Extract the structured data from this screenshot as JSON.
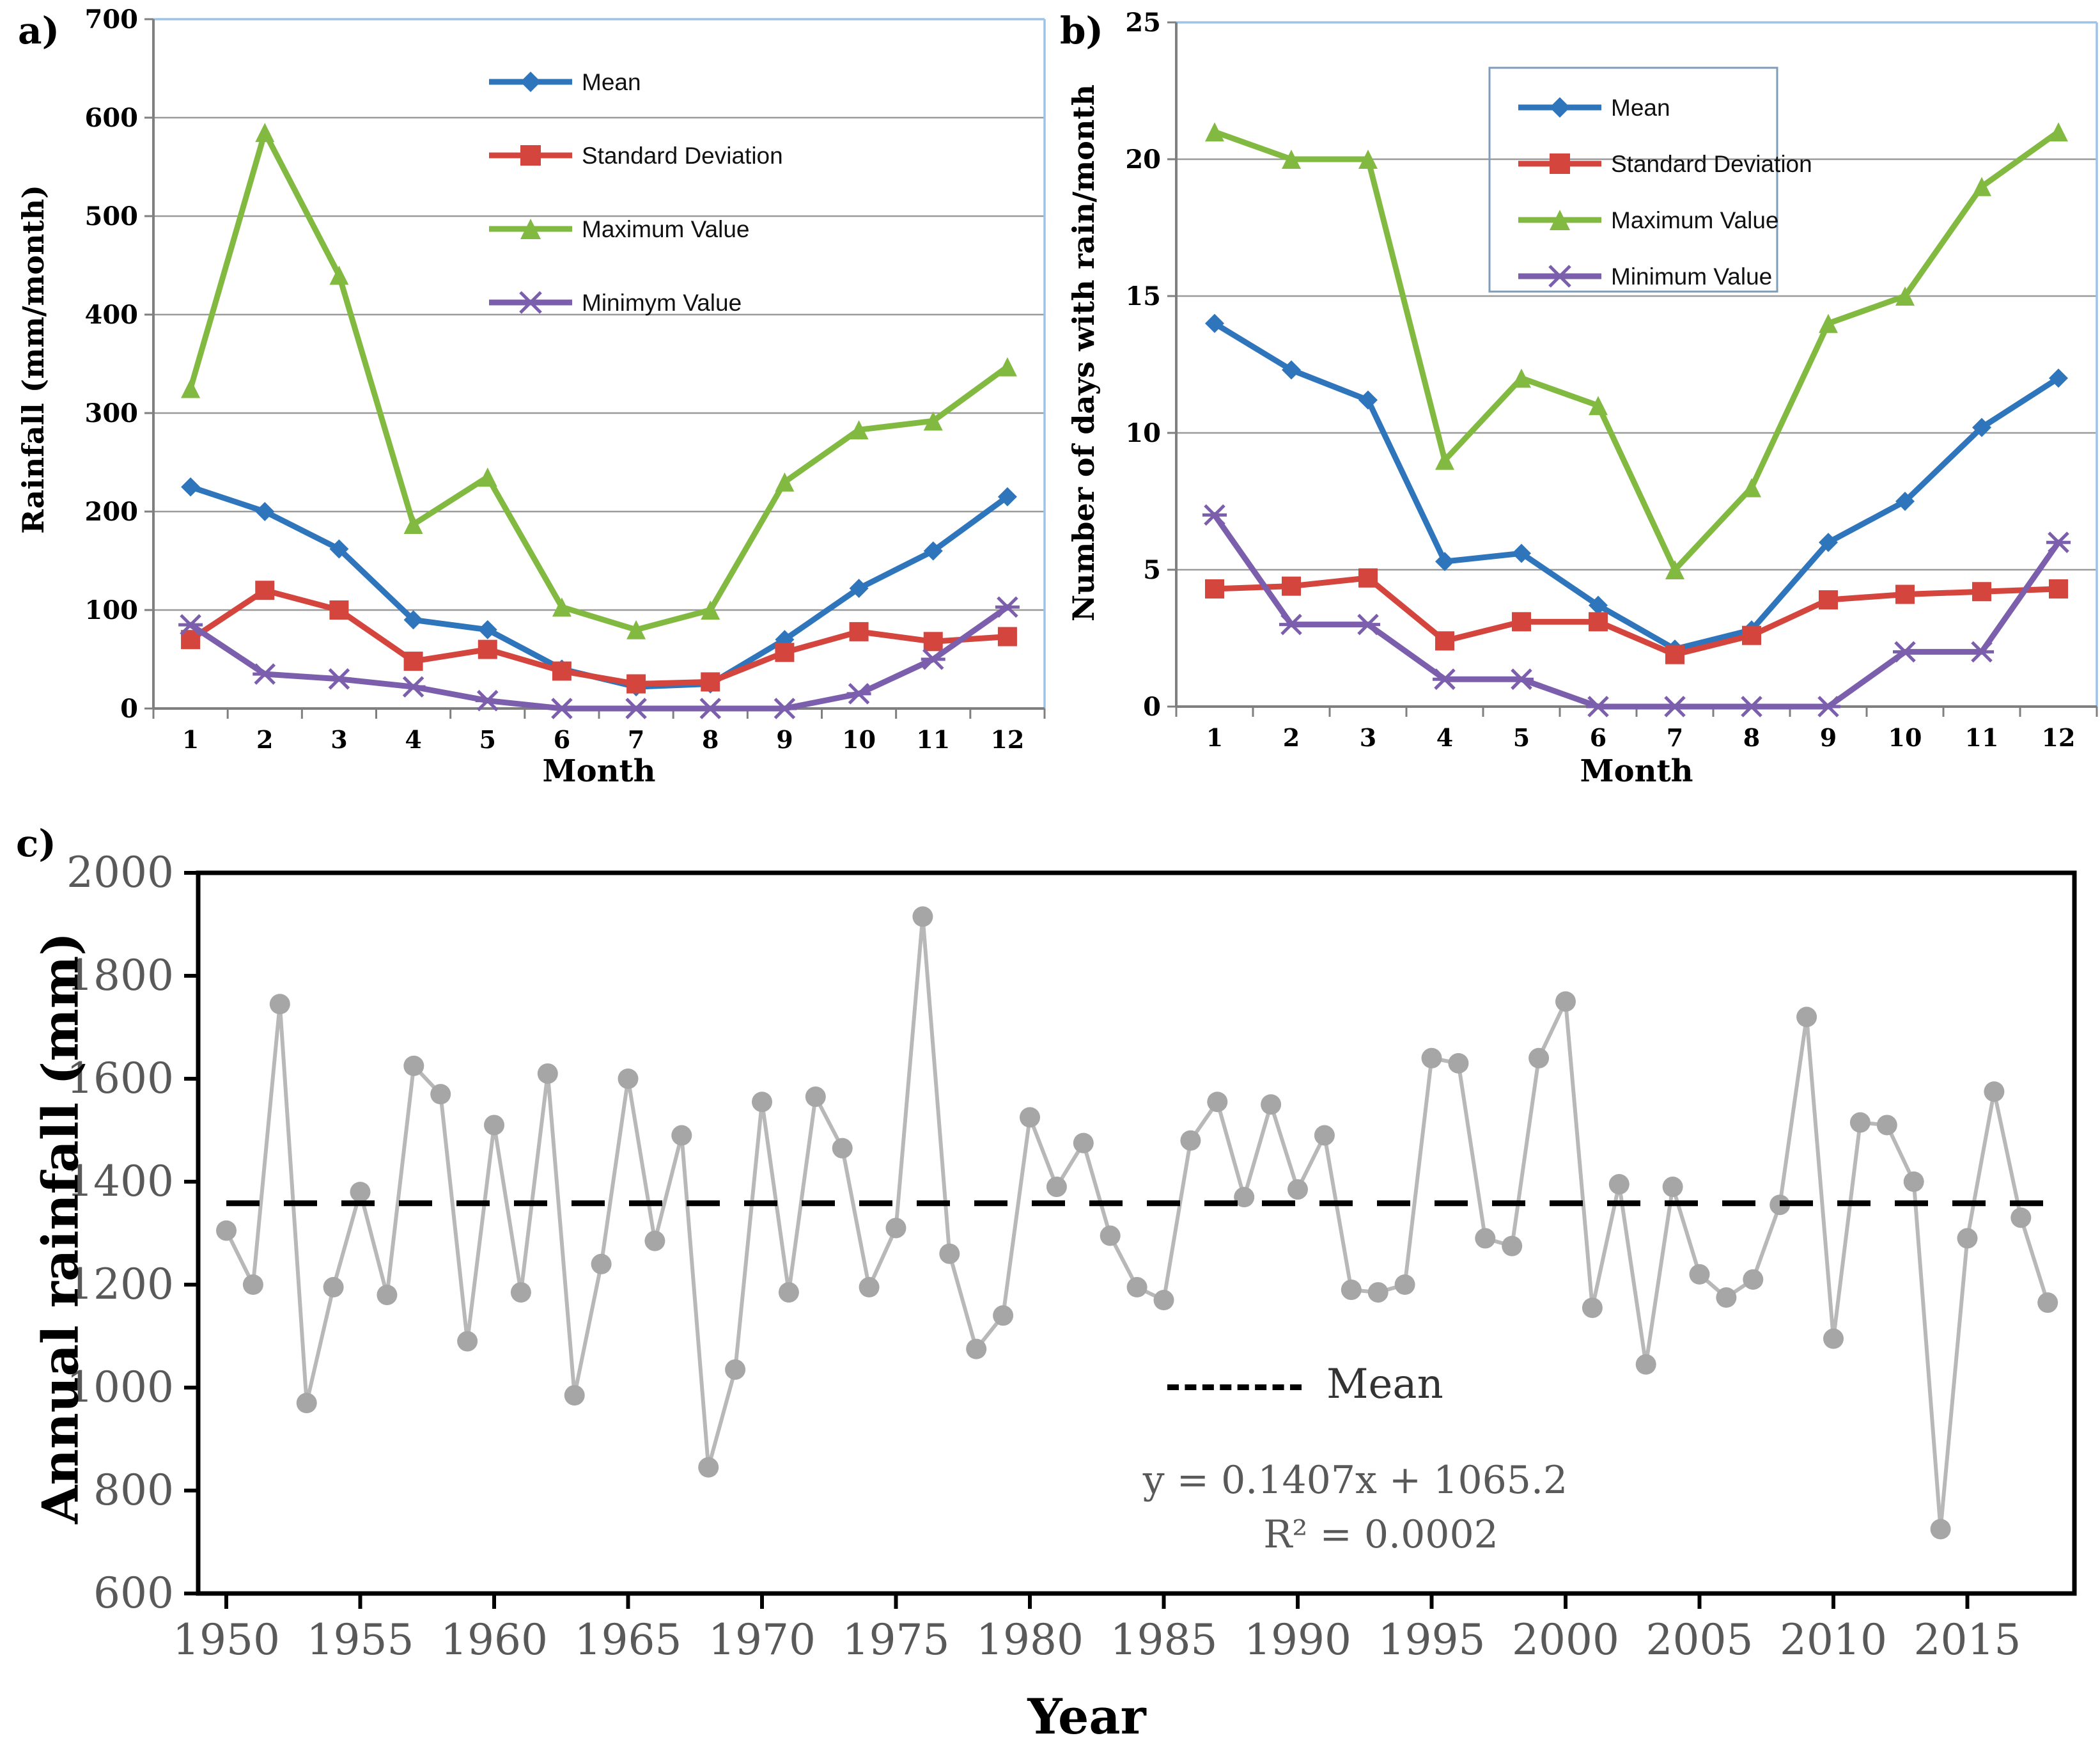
{
  "panels": {
    "a": "a)",
    "b": "b)",
    "c": "c)"
  },
  "colors": {
    "mean_blue": "#2e75bc",
    "sd_red": "#d4453e",
    "max_green": "#82ba41",
    "min_purple": "#7c5fac",
    "gridline_gray": "#9a9a9a",
    "axis_gray": "#7f7f7f",
    "border_lightblue": "#9dc3e6",
    "legend_box_border": "#7f9db9",
    "series_c_gray": "#a6a6a6",
    "c_line_gray": "#b8b8b8",
    "c_axis_black": "#000000",
    "c_text_gray": "#595959"
  },
  "chart_data": [
    {
      "id": "a",
      "type": "line",
      "title": "",
      "xlabel": "Month",
      "ylabel": "Rainfall (mm/month)",
      "categories": [
        1,
        2,
        3,
        4,
        5,
        6,
        7,
        8,
        9,
        10,
        11,
        12
      ],
      "ylim": [
        0,
        700
      ],
      "ytick_step": 100,
      "y_ticks": [
        0,
        100,
        200,
        300,
        400,
        500,
        600,
        700
      ],
      "grid": true,
      "legend_position": "top-center-no-box",
      "series": [
        {
          "name": "Mean",
          "marker": "diamond",
          "values": [
            225,
            200,
            162,
            90,
            80,
            40,
            22,
            25,
            70,
            122,
            160,
            215
          ]
        },
        {
          "name": "Standard Deviation",
          "marker": "square",
          "values": [
            70,
            120,
            100,
            48,
            60,
            38,
            25,
            27,
            57,
            78,
            68,
            73
          ]
        },
        {
          "name": "Maximum Value",
          "marker": "triangle",
          "values": [
            325,
            585,
            440,
            187,
            235,
            103,
            80,
            100,
            230,
            283,
            292,
            347
          ]
        },
        {
          "name": "Minimym Value",
          "marker": "x",
          "values": [
            85,
            35,
            30,
            22,
            8,
            0,
            0,
            0,
            0,
            15,
            50,
            103
          ]
        }
      ]
    },
    {
      "id": "b",
      "type": "line",
      "title": "",
      "xlabel": "Month",
      "ylabel": "Number of days with rain/month",
      "categories": [
        1,
        2,
        3,
        4,
        5,
        6,
        7,
        8,
        9,
        10,
        11,
        12
      ],
      "ylim": [
        0,
        25
      ],
      "ytick_step": 5,
      "y_ticks": [
        0,
        5,
        10,
        15,
        20,
        25
      ],
      "grid": true,
      "legend_position": "top-right-boxed",
      "series": [
        {
          "name": "Mean",
          "marker": "diamond",
          "values": [
            14,
            12.3,
            11.2,
            5.3,
            5.6,
            3.7,
            2.1,
            2.8,
            6,
            7.5,
            10.2,
            12
          ]
        },
        {
          "name": "Standard Deviation",
          "marker": "square",
          "values": [
            4.3,
            4.4,
            4.7,
            2.4,
            3.1,
            3.1,
            1.9,
            2.6,
            3.9,
            4.1,
            4.2,
            4.3
          ]
        },
        {
          "name": "Maximum Value",
          "marker": "triangle",
          "values": [
            21,
            20,
            20,
            9,
            12,
            11,
            5,
            8,
            14,
            15,
            19,
            21
          ]
        },
        {
          "name": "Minimum Value",
          "marker": "x",
          "values": [
            7,
            3,
            3,
            1,
            1,
            0,
            0,
            0,
            0,
            2,
            2,
            6
          ]
        }
      ]
    },
    {
      "id": "c",
      "type": "scatter-line",
      "title": "",
      "xlabel": "Year",
      "ylabel": "Annual rainfall (mm)",
      "x_start": 1950,
      "x_end": 2018,
      "x_tick_labels": [
        1950,
        1955,
        1960,
        1965,
        1970,
        1975,
        1980,
        1985,
        1990,
        1995,
        2000,
        2005,
        2010,
        2015
      ],
      "ylim": [
        600,
        2000
      ],
      "ytick_step": 200,
      "y_ticks": [
        600,
        800,
        1000,
        1200,
        1400,
        1600,
        1800,
        2000
      ],
      "grid": false,
      "mean_value": 1358,
      "mean_label": "Mean",
      "equation": "y = 0.1407x + 1065.2",
      "r_squared": "R² = 0.0002",
      "values": [
        1305,
        1200,
        1745,
        970,
        1195,
        1380,
        1180,
        1625,
        1570,
        1090,
        1510,
        1185,
        1610,
        985,
        1240,
        1600,
        1285,
        1490,
        845,
        1035,
        1555,
        1185,
        1565,
        1465,
        1195,
        1310,
        1915,
        1260,
        1075,
        1140,
        1525,
        1390,
        1475,
        1295,
        1195,
        1170,
        1480,
        1555,
        1370,
        1550,
        1385,
        1490,
        1190,
        1185,
        1200,
        1640,
        1630,
        1290,
        1275,
        1640,
        1750,
        1155,
        1395,
        1045,
        1390,
        1220,
        1175,
        1210,
        1355,
        1720,
        1095,
        1515,
        1510,
        1400,
        725,
        1290,
        1575,
        1330,
        1165
      ]
    }
  ]
}
